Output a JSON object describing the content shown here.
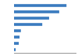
{
  "chart_data": {
    "type": "bar",
    "orientation": "horizontal",
    "values": [
      3530,
      3040,
      2360,
      1900,
      460,
      370,
      320,
      110
    ],
    "color": "#3a7bbf",
    "xlim": [
      0,
      4200
    ],
    "tick_labels": false
  }
}
